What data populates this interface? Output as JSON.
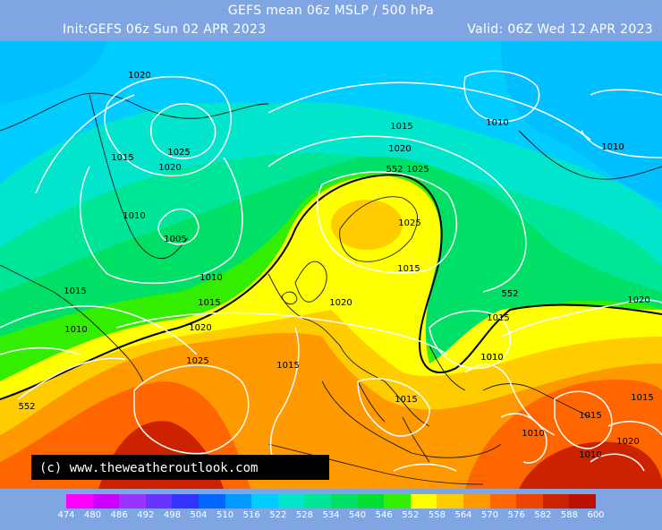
{
  "header": {
    "title": "GEFS mean 06z MSLP / 500 hPa",
    "init": "Init:GEFS 06z Sun 02 APR 2023",
    "valid": "Valid: 06Z Wed 12 APR 2023"
  },
  "map": {
    "copyright": "(c) www.theweatheroutlook.com",
    "isobar_labels": [
      "1020",
      "1015",
      "1025",
      "1020",
      "1010",
      "1005",
      "1010",
      "1015",
      "1015",
      "1010",
      "1020",
      "1025",
      "1015",
      "1015",
      "1020",
      "1020",
      "1025",
      "1010",
      "1015",
      "1010",
      "1025",
      "1015",
      "1010",
      "1020",
      "1015",
      "1010",
      "1010",
      "1020",
      "1015",
      "1010",
      "1015"
    ],
    "dam_labels": [
      "552",
      "552",
      "552"
    ]
  },
  "legend": {
    "values": [
      "474",
      "480",
      "486",
      "492",
      "498",
      "504",
      "510",
      "516",
      "522",
      "528",
      "534",
      "540",
      "546",
      "552",
      "558",
      "564",
      "570",
      "576",
      "582",
      "588",
      "600"
    ],
    "colors": [
      "#ff00ff",
      "#cc00ff",
      "#9933ff",
      "#6633ff",
      "#3333ff",
      "#0066ff",
      "#0099ff",
      "#00ccff",
      "#00e5cc",
      "#00e699",
      "#00e066",
      "#00dd33",
      "#33ee00",
      "#ffff00",
      "#ffcc00",
      "#ff9900",
      "#ff6600",
      "#ee4400",
      "#cc2200",
      "#bb1100"
    ]
  },
  "colors": {
    "background": "#7fa6e3",
    "isobar": "#ffffff",
    "dam_line": "#000000"
  }
}
